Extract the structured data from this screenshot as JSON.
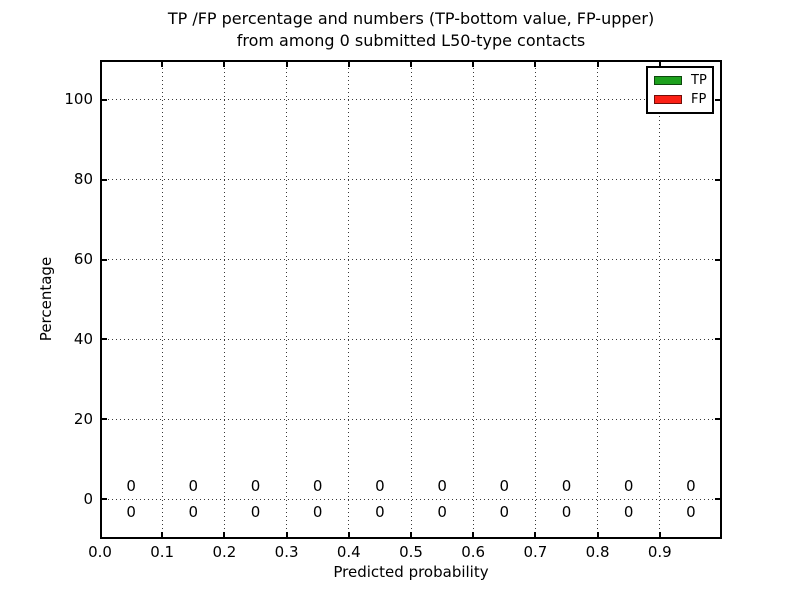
{
  "chart": {
    "title_line1": "TP /FP percentage and numbers (TP-bottom value, FP-upper)",
    "title_line2": "from among 0 submitted L50-type contacts",
    "xlabel": "Predicted probability",
    "ylabel": "Percentage"
  },
  "legend": {
    "items": [
      {
        "label": "TP",
        "color": "#1da01d"
      },
      {
        "label": "FP",
        "color": "#fb2015"
      }
    ]
  },
  "chart_data": {
    "type": "bar",
    "title": "TP /FP percentage and numbers (TP-bottom value, FP-upper) from among 0 submitted L50-type contacts",
    "xlabel": "Predicted probability",
    "ylabel": "Percentage",
    "xlim": [
      0.0,
      1.0
    ],
    "ylim": [
      -10,
      110
    ],
    "x_tick_labels": [
      "0.0",
      "0.1",
      "0.2",
      "0.3",
      "0.4",
      "0.5",
      "0.6",
      "0.7",
      "0.8",
      "0.9"
    ],
    "y_ticks": [
      0,
      20,
      40,
      60,
      80,
      100
    ],
    "grid": true,
    "grid_style": "dotted",
    "legend_position": "upper right",
    "categories": [
      0.05,
      0.15,
      0.25,
      0.35,
      0.45,
      0.55,
      0.65,
      0.75,
      0.85,
      0.95
    ],
    "series": [
      {
        "name": "TP",
        "color": "#1da01d",
        "values": [
          0,
          0,
          0,
          0,
          0,
          0,
          0,
          0,
          0,
          0
        ]
      },
      {
        "name": "FP",
        "color": "#fb2015",
        "values": [
          0,
          0,
          0,
          0,
          0,
          0,
          0,
          0,
          0,
          0
        ]
      }
    ],
    "annotations": {
      "fp_upper_labels": [
        "0",
        "0",
        "0",
        "0",
        "0",
        "0",
        "0",
        "0",
        "0",
        "0"
      ],
      "tp_bottom_labels": [
        "0",
        "0",
        "0",
        "0",
        "0",
        "0",
        "0",
        "0",
        "0",
        "0"
      ]
    }
  }
}
